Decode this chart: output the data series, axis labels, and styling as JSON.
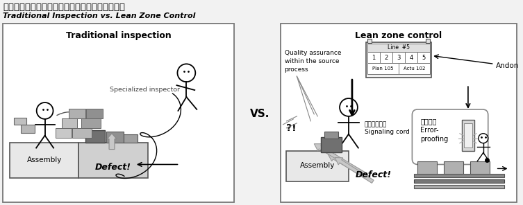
{
  "title_japanese": "伝統的な検査による品質保証と、自工程品質保証",
  "title_english": "Traditional Inspection vs. Lean Zone Control",
  "left_panel_title": "Traditional inspection",
  "right_panel_title": "Lean zone control",
  "vs_text": "VS.",
  "left_labels": {
    "assembly": "Assembly",
    "defect": "Defect!",
    "inspector": "Specialized inspector"
  },
  "right_labels": {
    "assembly": "Assembly",
    "defect": "Defect!",
    "quality_assurance": "Quality assurance\nwithin the source\nprocess",
    "signaling": "ひもスイッチ\nSignaling cord",
    "error_proofing": "ポカヨケ\nError-\nproofing",
    "andon": "Andon",
    "exclamation": "?!"
  },
  "andon_text": "Line  #5",
  "andon_numbers": [
    "1",
    "2",
    "3",
    "4",
    "5"
  ],
  "andon_plan": "Plan 105",
  "andon_actual": "Actu 102",
  "bg_color": "#f0f0f0",
  "panel_bg": "#ffffff",
  "border_color": "#888888"
}
